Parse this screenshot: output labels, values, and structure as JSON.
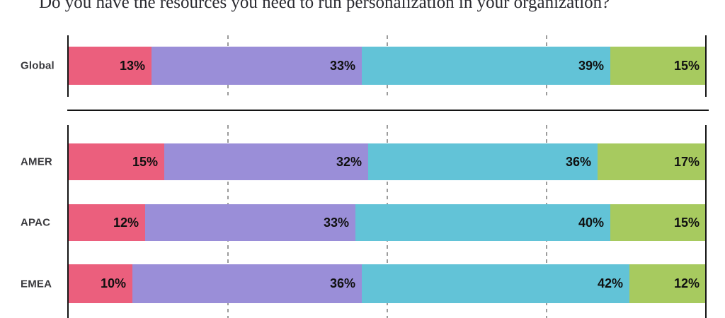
{
  "title": "Do you have the resources you need to run personalization in your organization?",
  "colors": {
    "segment_colors": [
      "#eb5f7d",
      "#9a8ed8",
      "#62c3d7",
      "#a7ca5f"
    ],
    "axis": "#141414",
    "gridline": "#9c9c9c",
    "row_label": "#3a3a3e",
    "value_text": "#101010",
    "background": "#ffffff"
  },
  "chart_data": {
    "type": "bar",
    "stacked": true,
    "orientation": "horizontal",
    "title": "Do you have the resources you need to run personalization in your organization?",
    "categories": [
      "Global",
      "AMER",
      "APAC",
      "EMEA"
    ],
    "groups": [
      {
        "name": "global",
        "rows": [
          {
            "label": "Global",
            "values": [
              13,
              33,
              39,
              15
            ]
          }
        ]
      },
      {
        "name": "regions",
        "rows": [
          {
            "label": "AMER",
            "values": [
              15,
              32,
              36,
              17
            ]
          },
          {
            "label": "APAC",
            "values": [
              12,
              33,
              40,
              15
            ]
          },
          {
            "label": "EMEA",
            "values": [
              10,
              36,
              42,
              12
            ]
          }
        ]
      }
    ],
    "value_suffix": "%",
    "xlim": [
      0,
      100
    ],
    "gridlines_percent": [
      25,
      50,
      75
    ],
    "grid": "dashed-vertical",
    "legend": "none"
  }
}
